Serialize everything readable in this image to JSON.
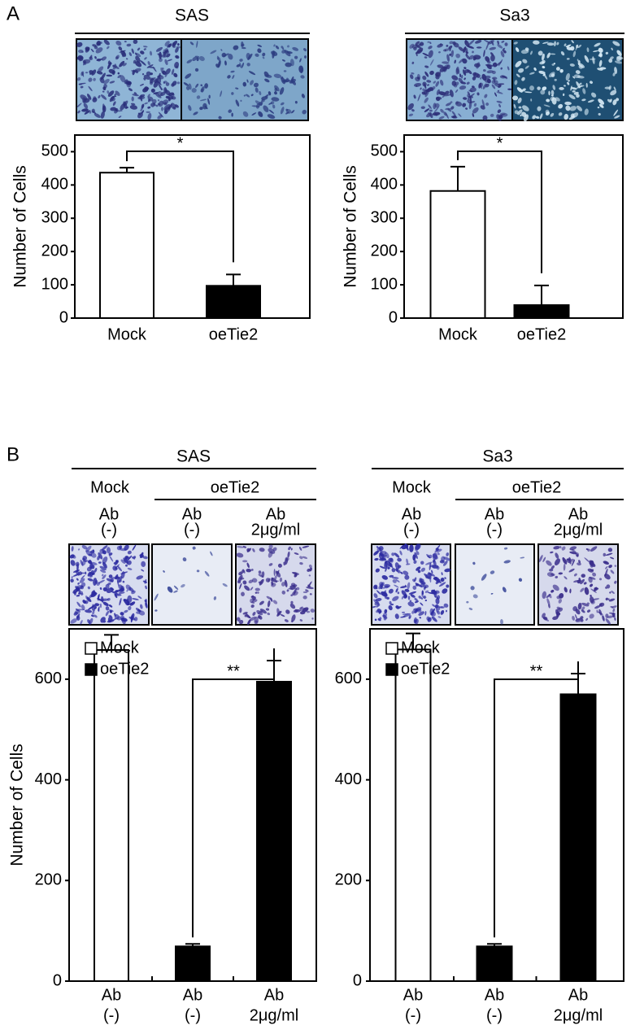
{
  "panels": [
    {
      "label": "A",
      "cells": [
        {
          "title": "SAS"
        },
        {
          "title": "Sa3"
        }
      ]
    },
    {
      "label": "B",
      "cells": [
        {
          "title": "SAS",
          "groups": [
            "Mock",
            "oeTie2"
          ],
          "conditions": [
            [
              "Ab",
              "(-)"
            ],
            [
              "Ab",
              "(-)"
            ],
            [
              "Ab",
              "2μg/ml"
            ]
          ]
        },
        {
          "title": "Sa3",
          "groups": [
            "Mock",
            "oeTie2"
          ],
          "conditions": [
            [
              "Ab",
              "(-)"
            ],
            [
              "Ab",
              "(-)"
            ],
            [
              "Ab",
              "2μg/ml"
            ]
          ]
        }
      ]
    }
  ],
  "chart_data": [
    {
      "type": "bar",
      "ylabel": "Number of Cells",
      "categories": [
        [
          "Mock"
        ],
        [
          "oeTie2"
        ]
      ],
      "values": [
        437,
        97
      ],
      "errors": [
        15,
        34
      ],
      "colors": [
        "#ffffff",
        "#000000"
      ],
      "annotation": "*",
      "ylim": [
        0,
        550
      ],
      "yticks": [
        0,
        100,
        200,
        300,
        400,
        500
      ]
    },
    {
      "type": "bar",
      "ylabel": "Number of Cells",
      "categories": [
        [
          "Mock"
        ],
        [
          "oeTie2"
        ]
      ],
      "values": [
        382,
        39
      ],
      "errors": [
        73,
        59
      ],
      "colors": [
        "#ffffff",
        "#000000"
      ],
      "annotation": "*",
      "ylim": [
        0,
        550
      ],
      "yticks": [
        0,
        100,
        200,
        300,
        400,
        500
      ]
    },
    {
      "type": "bar",
      "ylabel": "Number of Cells",
      "categories": [
        [
          "Ab",
          "(-)"
        ],
        [
          "Ab",
          "(-)"
        ],
        [
          "Ab",
          "2μg/ml"
        ]
      ],
      "legend": true,
      "series": [
        {
          "name": "Mock",
          "color": "#ffffff",
          "values": [
            658,
            null,
            null
          ],
          "errors": [
            30,
            null,
            null
          ]
        },
        {
          "name": "oeTie2",
          "color": "#000000",
          "values": [
            null,
            69,
            595
          ],
          "errors": [
            null,
            5,
            42
          ]
        }
      ],
      "annotation": "**",
      "ylim": [
        0,
        700
      ],
      "yticks": [
        0,
        200,
        400,
        600
      ]
    },
    {
      "type": "bar",
      "categories": [
        [
          "Ab",
          "(-)"
        ],
        [
          "Ab",
          "(-)"
        ],
        [
          "Ab",
          "2μg/ml"
        ]
      ],
      "legend": true,
      "series": [
        {
          "name": "Mock",
          "color": "#ffffff",
          "values": [
            659,
            null,
            null
          ],
          "errors": [
            32,
            null,
            null
          ]
        },
        {
          "name": "oeTie2",
          "color": "#000000",
          "values": [
            null,
            69,
            570
          ],
          "errors": [
            null,
            5,
            41
          ]
        }
      ],
      "annotation": "**",
      "ylim": [
        0,
        700
      ],
      "yticks": [
        0,
        200,
        400,
        600
      ]
    }
  ]
}
